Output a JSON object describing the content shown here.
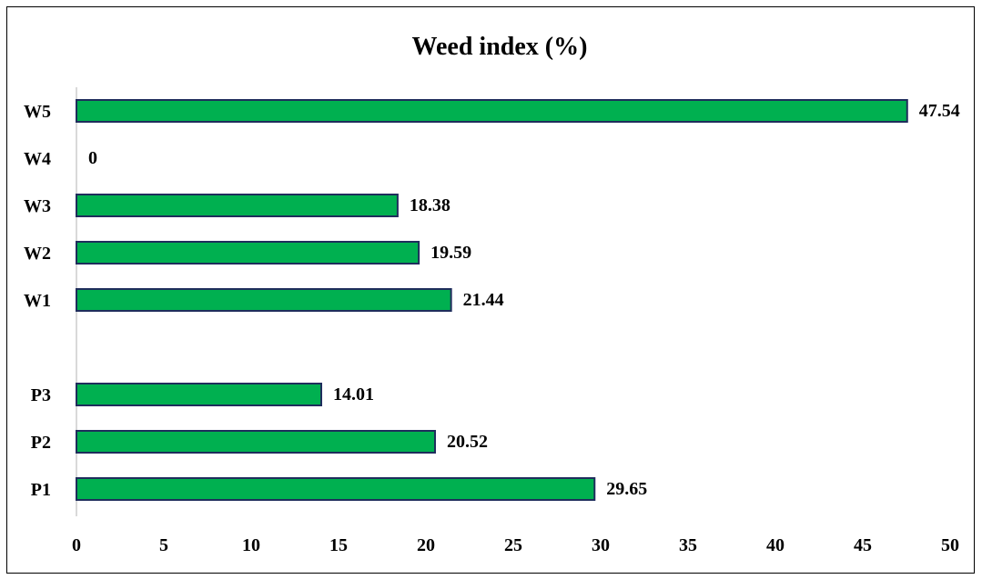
{
  "chart_data": {
    "type": "bar",
    "orientation": "horizontal",
    "title": "Weed index (%)",
    "xlabel": "",
    "ylabel": "",
    "xlim": [
      0,
      50
    ],
    "x_ticks": [
      0,
      5,
      10,
      15,
      20,
      25,
      30,
      35,
      40,
      45,
      50
    ],
    "grid": false,
    "categories": [
      "W5",
      "W4",
      "W3",
      "W2",
      "W1",
      "",
      "P3",
      "P2",
      "P1"
    ],
    "values": [
      47.54,
      0,
      18.38,
      19.59,
      21.44,
      null,
      14.01,
      20.52,
      29.65
    ],
    "value_labels": [
      "47.54",
      "0",
      "18.38",
      "19.59",
      "21.44",
      "",
      "14.01",
      "20.52",
      "29.65"
    ],
    "bar_color": "#00B050",
    "bar_border_color": "#1F2D5C"
  }
}
